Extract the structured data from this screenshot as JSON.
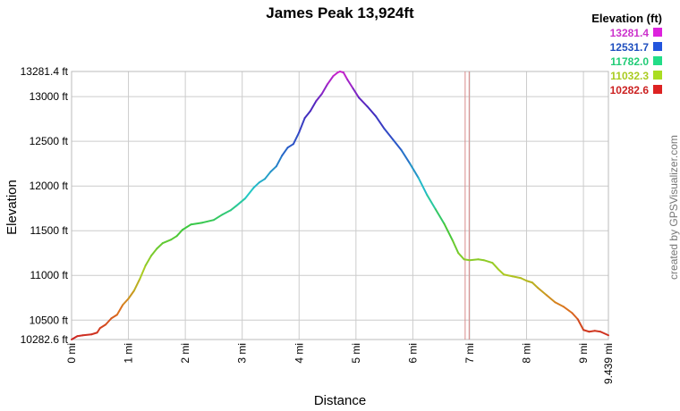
{
  "chart_data": {
    "type": "line",
    "title": "James Peak 13,924ft",
    "xlabel": "Distance",
    "ylabel": "Elevation",
    "credit": "created by GPSVisualizer.com",
    "xlim": [
      0,
      9.439
    ],
    "ylim": [
      10282.6,
      13281.4
    ],
    "x_ticks": [
      {
        "v": 0,
        "label": "0 mi"
      },
      {
        "v": 1,
        "label": "1 mi"
      },
      {
        "v": 2,
        "label": "2 mi"
      },
      {
        "v": 3,
        "label": "3 mi"
      },
      {
        "v": 4,
        "label": "4 mi"
      },
      {
        "v": 5,
        "label": "5 mi"
      },
      {
        "v": 6,
        "label": "6 mi"
      },
      {
        "v": 7,
        "label": "7 mi"
      },
      {
        "v": 8,
        "label": "8 mi"
      },
      {
        "v": 9,
        "label": "9 mi"
      },
      {
        "v": 9.439,
        "label": "9.439 mi"
      }
    ],
    "y_ticks": [
      {
        "v": 10282.6,
        "label": "10282.6 ft"
      },
      {
        "v": 10500,
        "label": "10500 ft"
      },
      {
        "v": 11000,
        "label": "11000 ft"
      },
      {
        "v": 11500,
        "label": "11500 ft"
      },
      {
        "v": 12000,
        "label": "12000 ft"
      },
      {
        "v": 12500,
        "label": "12500 ft"
      },
      {
        "v": 13000,
        "label": "13000 ft"
      },
      {
        "v": 13281.4,
        "label": "13281.4 ft"
      }
    ],
    "legend": {
      "title": "Elevation (ft)",
      "placement": "top-right",
      "items": [
        {
          "label": "13281.4",
          "color": "#cc33cc",
          "swatch": "#dd22dd"
        },
        {
          "label": "12531.7",
          "color": "#1f4fbf",
          "swatch": "#2255dd"
        },
        {
          "label": "11782.0",
          "color": "#22cc77",
          "swatch": "#22dd88"
        },
        {
          "label": "11032.3",
          "color": "#aacc22",
          "swatch": "#aadd22"
        },
        {
          "label": "10282.6",
          "color": "#cc2222",
          "swatch": "#dd2222"
        }
      ]
    },
    "marker_lines": [
      6.92,
      6.99
    ],
    "marker_color": "#d98a8a",
    "series": [
      {
        "points": [
          [
            0.0,
            10282.6
          ],
          [
            0.1,
            10320
          ],
          [
            0.2,
            10330
          ],
          [
            0.35,
            10340
          ],
          [
            0.45,
            10360
          ],
          [
            0.5,
            10410
          ],
          [
            0.6,
            10450
          ],
          [
            0.7,
            10520
          ],
          [
            0.8,
            10560
          ],
          [
            0.9,
            10670
          ],
          [
            1.0,
            10740
          ],
          [
            1.1,
            10830
          ],
          [
            1.2,
            10960
          ],
          [
            1.3,
            11110
          ],
          [
            1.4,
            11220
          ],
          [
            1.5,
            11300
          ],
          [
            1.6,
            11360
          ],
          [
            1.75,
            11400
          ],
          [
            1.85,
            11440
          ],
          [
            1.95,
            11510
          ],
          [
            2.1,
            11570
          ],
          [
            2.3,
            11590
          ],
          [
            2.5,
            11620
          ],
          [
            2.65,
            11680
          ],
          [
            2.8,
            11730
          ],
          [
            2.9,
            11780
          ],
          [
            3.05,
            11860
          ],
          [
            3.2,
            11980
          ],
          [
            3.3,
            12040
          ],
          [
            3.4,
            12080
          ],
          [
            3.5,
            12160
          ],
          [
            3.6,
            12220
          ],
          [
            3.7,
            12340
          ],
          [
            3.8,
            12430
          ],
          [
            3.9,
            12470
          ],
          [
            4.0,
            12600
          ],
          [
            4.1,
            12760
          ],
          [
            4.2,
            12840
          ],
          [
            4.3,
            12950
          ],
          [
            4.4,
            13030
          ],
          [
            4.5,
            13140
          ],
          [
            4.6,
            13230
          ],
          [
            4.68,
            13270
          ],
          [
            4.72,
            13281.4
          ],
          [
            4.78,
            13270
          ],
          [
            4.85,
            13190
          ],
          [
            4.95,
            13090
          ],
          [
            5.05,
            12990
          ],
          [
            5.2,
            12890
          ],
          [
            5.35,
            12780
          ],
          [
            5.5,
            12640
          ],
          [
            5.65,
            12520
          ],
          [
            5.8,
            12400
          ],
          [
            5.95,
            12250
          ],
          [
            6.1,
            12090
          ],
          [
            6.25,
            11900
          ],
          [
            6.4,
            11740
          ],
          [
            6.55,
            11580
          ],
          [
            6.7,
            11390
          ],
          [
            6.8,
            11250
          ],
          [
            6.9,
            11180
          ],
          [
            7.0,
            11170
          ],
          [
            7.15,
            11180
          ],
          [
            7.25,
            11170
          ],
          [
            7.4,
            11140
          ],
          [
            7.5,
            11070
          ],
          [
            7.6,
            11010
          ],
          [
            7.75,
            10990
          ],
          [
            7.9,
            10970
          ],
          [
            8.0,
            10940
          ],
          [
            8.1,
            10920
          ],
          [
            8.2,
            10860
          ],
          [
            8.35,
            10780
          ],
          [
            8.5,
            10700
          ],
          [
            8.65,
            10650
          ],
          [
            8.8,
            10580
          ],
          [
            8.9,
            10510
          ],
          [
            9.0,
            10390
          ],
          [
            9.1,
            10370
          ],
          [
            9.2,
            10380
          ],
          [
            9.3,
            10370
          ],
          [
            9.439,
            10330
          ]
        ]
      }
    ]
  }
}
